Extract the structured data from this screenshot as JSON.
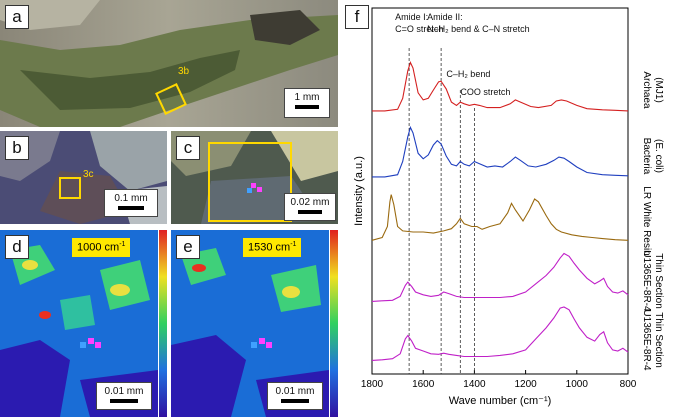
{
  "panels": {
    "a": {
      "letter": "a",
      "scale": "1 mm",
      "callout": "3b"
    },
    "b": {
      "letter": "b",
      "scale": "0.1 mm",
      "callout": "3c"
    },
    "c": {
      "letter": "c",
      "scale": "0.02 mm"
    },
    "d": {
      "letter": "d",
      "scale": "0.01 mm",
      "map_label": "1000 cm",
      "map_label_sup": "-1"
    },
    "e": {
      "letter": "e",
      "scale": "0.01 mm",
      "map_label": "1530 cm",
      "map_label_sup": "-1"
    },
    "f": {
      "letter": "f"
    }
  },
  "chart_data": {
    "type": "line",
    "xlabel": "Wave number (cm⁻¹)",
    "ylabel": "Intensity (a.u.)",
    "xlim": [
      1800,
      800
    ],
    "x_reversed": true,
    "x_ticks": [
      "1800",
      "1600",
      "1400",
      "1200",
      "1000",
      "800"
    ],
    "band_annotations": [
      {
        "line1": "Amide I:",
        "line2": "C=O stretch",
        "x": 1655
      },
      {
        "line1": "Amide II:",
        "line2": "N–H₂ bend & C–N stretch",
        "x": 1530
      },
      {
        "line1": "C–H₂ bend",
        "line2": "",
        "x": 1455
      },
      {
        "line1": "COO stretch",
        "line2": "",
        "x": 1400
      }
    ],
    "series": [
      {
        "line1": "Archaea",
        "line2": "(MJ1)",
        "color": "#d42020",
        "points": [
          [
            1800,
            0.02
          ],
          [
            1750,
            0.02
          ],
          [
            1700,
            0.05
          ],
          [
            1680,
            0.25
          ],
          [
            1660,
            0.75
          ],
          [
            1650,
            0.9
          ],
          [
            1640,
            0.8
          ],
          [
            1620,
            0.35
          ],
          [
            1600,
            0.22
          ],
          [
            1580,
            0.25
          ],
          [
            1560,
            0.4
          ],
          [
            1540,
            0.55
          ],
          [
            1530,
            0.56
          ],
          [
            1510,
            0.42
          ],
          [
            1490,
            0.18
          ],
          [
            1470,
            0.12
          ],
          [
            1455,
            0.18
          ],
          [
            1440,
            0.15
          ],
          [
            1420,
            0.12
          ],
          [
            1400,
            0.14
          ],
          [
            1380,
            0.12
          ],
          [
            1350,
            0.08
          ],
          [
            1300,
            0.08
          ],
          [
            1260,
            0.15
          ],
          [
            1240,
            0.22
          ],
          [
            1220,
            0.18
          ],
          [
            1180,
            0.1
          ],
          [
            1150,
            0.08
          ],
          [
            1100,
            0.12
          ],
          [
            1080,
            0.2
          ],
          [
            1060,
            0.22
          ],
          [
            1040,
            0.2
          ],
          [
            1000,
            0.12
          ],
          [
            960,
            0.06
          ],
          [
            900,
            0.04
          ],
          [
            850,
            0.03
          ],
          [
            800,
            0.02
          ]
        ]
      },
      {
        "line1": "Bacteria",
        "line2": "(E. coli)",
        "color": "#1f3fbf",
        "points": [
          [
            1800,
            0.02
          ],
          [
            1750,
            0.02
          ],
          [
            1700,
            0.06
          ],
          [
            1680,
            0.3
          ],
          [
            1660,
            0.75
          ],
          [
            1650,
            0.92
          ],
          [
            1640,
            0.82
          ],
          [
            1620,
            0.45
          ],
          [
            1600,
            0.35
          ],
          [
            1580,
            0.42
          ],
          [
            1560,
            0.6
          ],
          [
            1545,
            0.68
          ],
          [
            1530,
            0.62
          ],
          [
            1510,
            0.4
          ],
          [
            1490,
            0.25
          ],
          [
            1470,
            0.22
          ],
          [
            1455,
            0.3
          ],
          [
            1440,
            0.25
          ],
          [
            1420,
            0.22
          ],
          [
            1400,
            0.3
          ],
          [
            1380,
            0.26
          ],
          [
            1350,
            0.2
          ],
          [
            1320,
            0.22
          ],
          [
            1290,
            0.2
          ],
          [
            1260,
            0.3
          ],
          [
            1240,
            0.38
          ],
          [
            1220,
            0.32
          ],
          [
            1190,
            0.22
          ],
          [
            1160,
            0.2
          ],
          [
            1120,
            0.25
          ],
          [
            1090,
            0.32
          ],
          [
            1070,
            0.38
          ],
          [
            1050,
            0.36
          ],
          [
            1030,
            0.3
          ],
          [
            1000,
            0.2
          ],
          [
            960,
            0.1
          ],
          [
            900,
            0.06
          ],
          [
            850,
            0.05
          ],
          [
            800,
            0.04
          ]
        ]
      },
      {
        "line1": "LR White Resin",
        "line2": "",
        "color": "#9a6a10",
        "points": [
          [
            1800,
            0.05
          ],
          [
            1760,
            0.1
          ],
          [
            1740,
            0.3
          ],
          [
            1730,
            0.75
          ],
          [
            1725,
            0.88
          ],
          [
            1715,
            0.7
          ],
          [
            1700,
            0.3
          ],
          [
            1680,
            0.22
          ],
          [
            1640,
            0.2
          ],
          [
            1600,
            0.2
          ],
          [
            1560,
            0.18
          ],
          [
            1520,
            0.22
          ],
          [
            1490,
            0.26
          ],
          [
            1470,
            0.35
          ],
          [
            1455,
            0.45
          ],
          [
            1440,
            0.35
          ],
          [
            1410,
            0.3
          ],
          [
            1390,
            0.3
          ],
          [
            1370,
            0.25
          ],
          [
            1340,
            0.3
          ],
          [
            1300,
            0.35
          ],
          [
            1270,
            0.55
          ],
          [
            1255,
            0.72
          ],
          [
            1240,
            0.6
          ],
          [
            1210,
            0.4
          ],
          [
            1185,
            0.6
          ],
          [
            1165,
            0.8
          ],
          [
            1150,
            0.75
          ],
          [
            1120,
            0.5
          ],
          [
            1100,
            0.35
          ],
          [
            1080,
            0.25
          ],
          [
            1060,
            0.2
          ],
          [
            1020,
            0.15
          ],
          [
            980,
            0.12
          ],
          [
            940,
            0.1
          ],
          [
            900,
            0.08
          ],
          [
            850,
            0.06
          ],
          [
            800,
            0.05
          ]
        ]
      },
      {
        "line1": "U1365E-8R-4",
        "line2": "Thin Section",
        "color": "#c020c8",
        "points": [
          [
            1800,
            0.03
          ],
          [
            1760,
            0.04
          ],
          [
            1720,
            0.05
          ],
          [
            1690,
            0.12
          ],
          [
            1670,
            0.32
          ],
          [
            1660,
            0.38
          ],
          [
            1645,
            0.3
          ],
          [
            1630,
            0.2
          ],
          [
            1600,
            0.15
          ],
          [
            1570,
            0.12
          ],
          [
            1540,
            0.14
          ],
          [
            1520,
            0.2
          ],
          [
            1500,
            0.17
          ],
          [
            1470,
            0.12
          ],
          [
            1440,
            0.1
          ],
          [
            1400,
            0.1
          ],
          [
            1350,
            0.1
          ],
          [
            1300,
            0.1
          ],
          [
            1250,
            0.12
          ],
          [
            1200,
            0.2
          ],
          [
            1160,
            0.35
          ],
          [
            1120,
            0.5
          ],
          [
            1090,
            0.65
          ],
          [
            1065,
            0.82
          ],
          [
            1050,
            0.9
          ],
          [
            1030,
            0.85
          ],
          [
            1010,
            0.72
          ],
          [
            990,
            0.6
          ],
          [
            960,
            0.45
          ],
          [
            930,
            0.35
          ],
          [
            910,
            0.4
          ],
          [
            895,
            0.45
          ],
          [
            880,
            0.3
          ],
          [
            860,
            0.2
          ],
          [
            840,
            0.18
          ],
          [
            820,
            0.22
          ],
          [
            800,
            0.15
          ]
        ]
      },
      {
        "line1": "U1365E-8R-4",
        "line2": "Thin Section",
        "color": "#c020c8",
        "points": [
          [
            1800,
            0.03
          ],
          [
            1760,
            0.04
          ],
          [
            1720,
            0.06
          ],
          [
            1690,
            0.15
          ],
          [
            1670,
            0.42
          ],
          [
            1660,
            0.48
          ],
          [
            1645,
            0.38
          ],
          [
            1630,
            0.25
          ],
          [
            1600,
            0.2
          ],
          [
            1570,
            0.15
          ],
          [
            1540,
            0.14
          ],
          [
            1520,
            0.16
          ],
          [
            1500,
            0.14
          ],
          [
            1470,
            0.12
          ],
          [
            1440,
            0.1
          ],
          [
            1400,
            0.1
          ],
          [
            1350,
            0.1
          ],
          [
            1300,
            0.12
          ],
          [
            1250,
            0.15
          ],
          [
            1200,
            0.22
          ],
          [
            1160,
            0.42
          ],
          [
            1120,
            0.62
          ],
          [
            1090,
            0.8
          ],
          [
            1065,
            0.98
          ],
          [
            1050,
            1.0
          ],
          [
            1030,
            0.95
          ],
          [
            1010,
            0.78
          ],
          [
            990,
            0.62
          ],
          [
            960,
            0.45
          ],
          [
            930,
            0.38
          ],
          [
            910,
            0.5
          ],
          [
            895,
            0.55
          ],
          [
            880,
            0.35
          ],
          [
            860,
            0.22
          ],
          [
            840,
            0.2
          ],
          [
            820,
            0.25
          ],
          [
            800,
            0.18
          ]
        ]
      }
    ]
  }
}
